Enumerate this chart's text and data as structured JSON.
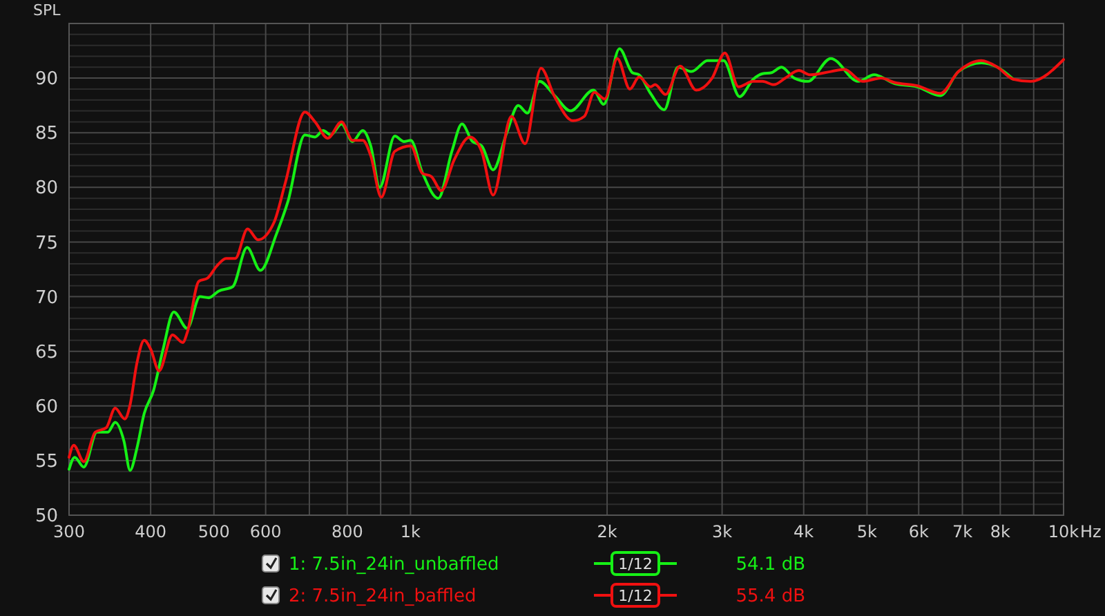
{
  "chart_data": {
    "type": "line",
    "ylabel": "SPL",
    "log": "x",
    "grid": true,
    "legend": "bottom",
    "line_style": "solid",
    "marker": "none",
    "xlim": [
      300,
      10000
    ],
    "xticks": [
      300,
      400,
      500,
      600,
      {
        "value": 700,
        "label": null
      },
      800,
      {
        "value": 900,
        "label": null
      },
      {
        "value": 1000,
        "label": "1k"
      },
      {
        "value": 2000,
        "label": "2k"
      },
      {
        "value": 3000,
        "label": "3k"
      },
      {
        "value": 4000,
        "label": "4k"
      },
      {
        "value": 5000,
        "label": "5k"
      },
      {
        "value": 6000,
        "label": "6k"
      },
      {
        "value": 7000,
        "label": "7k"
      },
      {
        "value": 8000,
        "label": "8k"
      },
      {
        "value": 9000,
        "label": null
      },
      {
        "value": 10000,
        "label": "10k"
      }
    ],
    "xlabel": "Hz",
    "ylim": [
      50,
      95
    ],
    "yticks": [
      50,
      {
        "value": 51,
        "label": null
      },
      {
        "value": 52,
        "label": null
      },
      {
        "value": 53,
        "label": null
      },
      {
        "value": 54,
        "label": null
      },
      55,
      {
        "value": 56,
        "label": null
      },
      {
        "value": 57,
        "label": null
      },
      {
        "value": 58,
        "label": null
      },
      {
        "value": 59,
        "label": null
      },
      60,
      {
        "value": 61,
        "label": null
      },
      {
        "value": 62,
        "label": null
      },
      {
        "value": 63,
        "label": null
      },
      {
        "value": 64,
        "label": null
      },
      65,
      {
        "value": 66,
        "label": null
      },
      {
        "value": 67,
        "label": null
      },
      {
        "value": 68,
        "label": null
      },
      {
        "value": 69,
        "label": null
      },
      70,
      {
        "value": 71,
        "label": null
      },
      {
        "value": 72,
        "label": null
      },
      {
        "value": 73,
        "label": null
      },
      {
        "value": 74,
        "label": null
      },
      75,
      {
        "value": 76,
        "label": null
      },
      {
        "value": 77,
        "label": null
      },
      {
        "value": 78,
        "label": null
      },
      {
        "value": 79,
        "label": null
      },
      80,
      {
        "value": 81,
        "label": null
      },
      {
        "value": 82,
        "label": null
      },
      {
        "value": 83,
        "label": null
      },
      {
        "value": 84,
        "label": null
      },
      85,
      {
        "value": 86,
        "label": null
      },
      {
        "value": 87,
        "label": null
      },
      {
        "value": 88,
        "label": null
      },
      {
        "value": 89,
        "label": null
      },
      90,
      {
        "value": 91,
        "label": null
      },
      {
        "value": 92,
        "label": null
      },
      {
        "value": 93,
        "label": null
      },
      {
        "value": 94,
        "label": null
      },
      {
        "value": 95,
        "label": null
      }
    ],
    "annotations": [
      "1/12",
      "54.1 dB",
      "1/12",
      "55.4 dB"
    ],
    "series": [
      {
        "name": "1: 7.5in_24in_unbaffled",
        "color": "#16f016",
        "x": [
          300,
          306,
          316,
          331,
          344,
          353,
          364,
          372,
          381,
          391,
          404,
          418,
          434,
          455,
          476,
          491,
          508,
          534,
          562,
          589,
          623,
          649,
          689,
          714,
          735,
          755,
          784,
          815,
          845,
          869,
          897,
          946,
          977,
          1001,
          1042,
          1103,
          1157,
          1199,
          1244,
          1285,
          1338,
          1404,
          1462,
          1510,
          1576,
          1662,
          1758,
          1906,
          1976,
          2089,
          2186,
          2239,
          2331,
          2446,
          2567,
          2694,
          2851,
          3016,
          3191,
          3348,
          3459,
          3570,
          3699,
          3869,
          4059,
          4401,
          4847,
          5128,
          5512,
          5972,
          6476,
          6904,
          7484,
          7919,
          8378
        ],
        "values": [
          54.2,
          55.3,
          54.4,
          57.6,
          57.6,
          58.5,
          56.8,
          54.1,
          56.1,
          59.3,
          61.4,
          65.2,
          68.6,
          67.1,
          70.0,
          69.9,
          70.5,
          70.9,
          74.5,
          72.4,
          75.7,
          78.7,
          84.8,
          84.6,
          85.2,
          84.8,
          85.8,
          84.2,
          85.2,
          83.8,
          80.0,
          84.7,
          84.2,
          84.3,
          81.4,
          79.0,
          83.3,
          85.8,
          84.2,
          83.8,
          81.6,
          85.0,
          87.5,
          86.8,
          89.7,
          88.4,
          87.0,
          88.9,
          87.6,
          92.7,
          90.5,
          90.3,
          88.6,
          87.1,
          91.0,
          90.6,
          91.6,
          91.6,
          88.3,
          89.9,
          90.4,
          90.5,
          91.0,
          90.0,
          89.7,
          91.8,
          89.7,
          90.3,
          89.5,
          89.2,
          88.4,
          90.6,
          91.4,
          91.0,
          89.9
        ]
      },
      {
        "name": "2: 7.5in_24in_baffled",
        "color": "#f01010",
        "x": [
          300,
          305,
          316,
          329,
          342,
          353,
          365,
          372,
          381,
          391,
          400,
          412,
          432,
          448,
          455,
          474,
          489,
          505,
          522,
          539,
          563,
          584,
          618,
          643,
          689,
          714,
          747,
          784,
          815,
          845,
          869,
          902,
          946,
          1001,
          1042,
          1076,
          1115,
          1166,
          1233,
          1285,
          1338,
          1427,
          1498,
          1584,
          1662,
          1773,
          1846,
          1912,
          1984,
          2073,
          2167,
          2239,
          2331,
          2369,
          2458,
          2588,
          2738,
          2896,
          3029,
          3179,
          3348,
          3459,
          3601,
          3749,
          3932,
          4094,
          4401,
          4617,
          4923,
          5252,
          5512,
          5972,
          6476,
          6904,
          7484,
          7919,
          8378,
          8906,
          10000
        ],
        "values": [
          55.3,
          56.4,
          54.9,
          57.6,
          58.0,
          59.8,
          58.8,
          60.1,
          63.9,
          66.0,
          65.2,
          63.2,
          66.5,
          65.8,
          66.7,
          71.4,
          71.7,
          72.8,
          73.5,
          73.5,
          76.2,
          75.2,
          76.8,
          80.4,
          86.9,
          86.0,
          84.5,
          86.0,
          84.3,
          84.3,
          82.9,
          79.1,
          83.3,
          83.8,
          81.3,
          81.0,
          79.7,
          82.5,
          84.6,
          83.3,
          79.3,
          86.5,
          84.0,
          90.9,
          88.3,
          86.1,
          86.5,
          88.7,
          88.1,
          91.8,
          89.0,
          90.1,
          89.2,
          89.4,
          88.5,
          91.1,
          88.9,
          90.0,
          92.3,
          89.2,
          89.7,
          89.7,
          89.4,
          90.0,
          90.7,
          90.3,
          90.6,
          90.8,
          89.7,
          90.0,
          89.6,
          89.3,
          88.6,
          90.6,
          91.6,
          91.0,
          89.9,
          89.7,
          91.7
        ]
      }
    ]
  }
}
